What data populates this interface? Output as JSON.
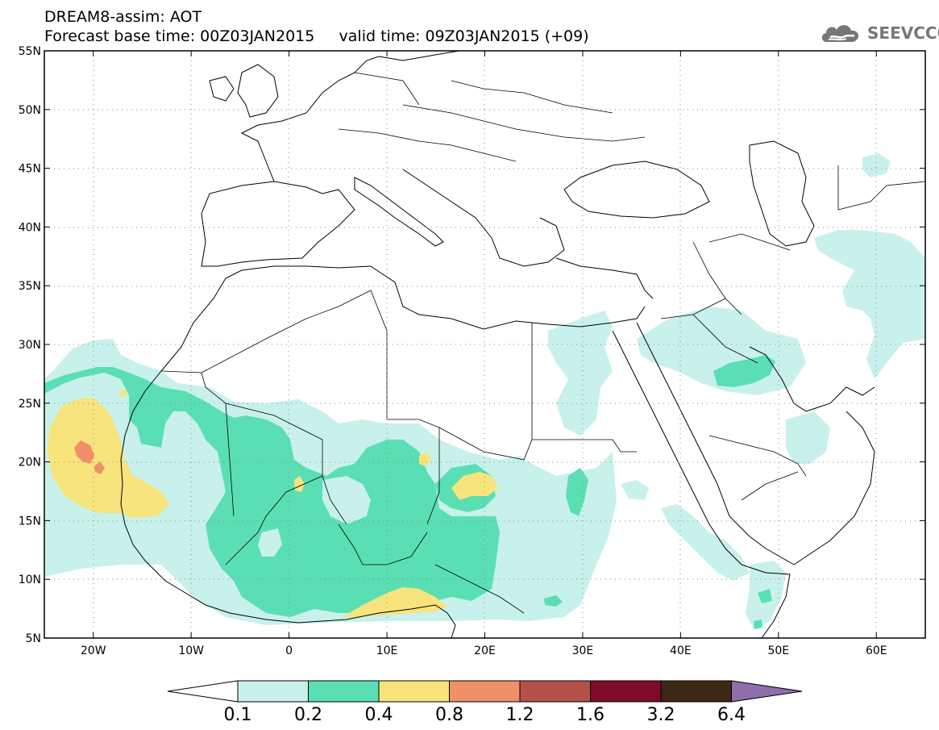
{
  "header": {
    "line1": "DREAM8-assim: AOT",
    "line2": "Forecast base time: 00Z03JAN2015     valid time: 09Z03JAN2015 (+09)"
  },
  "logo": {
    "text": "SEEVCCC",
    "icon": "cloud-icon"
  },
  "map": {
    "lat_ticks": [
      "55N",
      "50N",
      "45N",
      "40N",
      "35N",
      "30N",
      "25N",
      "20N",
      "15N",
      "10N",
      "5N"
    ],
    "lon_ticks": [
      "20W",
      "10W",
      "0",
      "10E",
      "20E",
      "30E",
      "40E",
      "50E",
      "60E"
    ],
    "extent": {
      "lon_min": -25,
      "lon_max": 65,
      "lat_min": 5,
      "lat_max": 55
    }
  },
  "colorbar": {
    "levels": [
      "0.1",
      "0.2",
      "0.4",
      "0.8",
      "1.2",
      "1.6",
      "3.2",
      "6.4"
    ],
    "colors": [
      "#ffffff",
      "#c8f1eb",
      "#5adfb4",
      "#f8e47c",
      "#ef9068",
      "#b4524a",
      "#7f0b2a",
      "#3d2816",
      "#8f6eac"
    ]
  },
  "fill_colors": {
    "light": "#c8f1eb",
    "green": "#5adfb4",
    "yellow": "#f8e47c",
    "orange": "#ef9068"
  }
}
